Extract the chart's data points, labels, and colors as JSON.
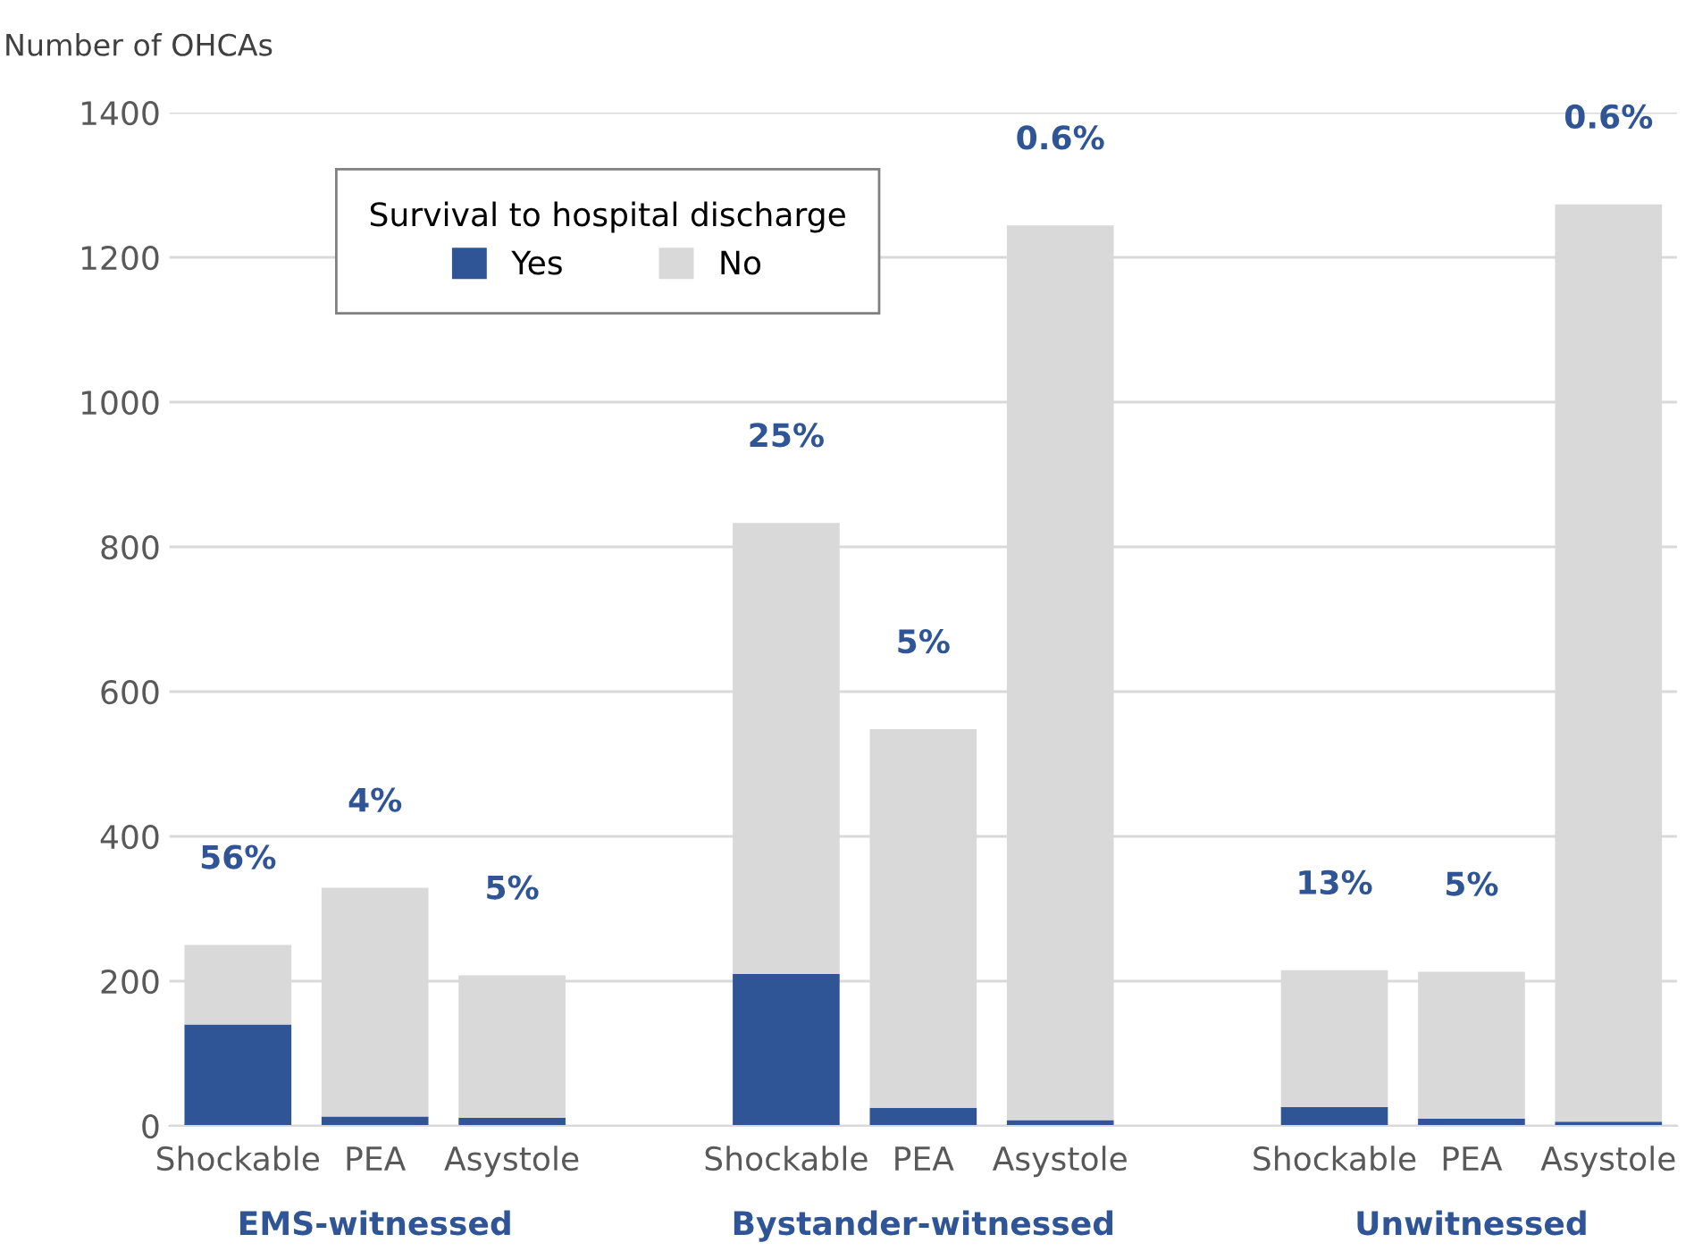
{
  "chart_data": {
    "type": "bar",
    "stacked": true,
    "ylabel": "Number of OHCAs",
    "categories": [
      "Shockable",
      "PEA",
      "Asystole",
      null,
      "Shockable",
      "PEA",
      "Asystole",
      null,
      "Shockable",
      "PEA",
      "Asystole"
    ],
    "series": [
      {
        "name": "Yes",
        "color": "#2f5597",
        "values": [
          140,
          13,
          11,
          null,
          210,
          25,
          8,
          null,
          26,
          10,
          6
        ]
      },
      {
        "name": "No",
        "color": "#d9d9d9",
        "values": [
          110,
          316,
          197,
          null,
          623,
          523,
          1236,
          null,
          189,
          203,
          1267
        ]
      }
    ],
    "annotations": [
      "56%",
      "4%",
      "5%",
      "25%",
      "5%",
      "0.6%",
      "13%",
      "5%",
      "0.6%",
      "EMS-witnessed",
      "Bystander-witnessed",
      "Unwitnessed"
    ],
    "legend_title": "Survival to hospital discharge",
    "legend": "top left",
    "ylim": [
      0,
      1400
    ],
    "yticks": [
      0,
      200,
      400,
      600,
      800,
      1000,
      1200,
      1400
    ],
    "grid": "y"
  }
}
